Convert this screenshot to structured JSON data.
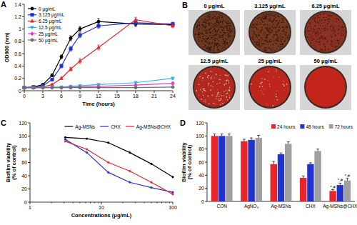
{
  "chart_data": [
    {
      "label": "A",
      "type": "line",
      "xlabel": "Time (hours)",
      "ylabel": "OD600 (nm)",
      "x": [
        0,
        1.5,
        3,
        4.5,
        6,
        7.5,
        9,
        12,
        18,
        24
      ],
      "xlim": [
        0,
        24
      ],
      "xticks": [
        0,
        3,
        6,
        9,
        12,
        15,
        18,
        21,
        24
      ],
      "ylim": [
        0,
        1.4
      ],
      "yticks": [
        0,
        0.2,
        0.4,
        0.6,
        0.8,
        1,
        1.2,
        1.4
      ],
      "legend": "upper left",
      "series": [
        {
          "name": "0 μg/mL",
          "color": "#000000",
          "marker": "circle",
          "values": [
            0.05,
            0.06,
            0.1,
            0.25,
            0.55,
            0.85,
            1.0,
            1.12,
            1.08,
            1.07
          ],
          "errors": [
            0.01,
            0.01,
            0.01,
            0.02,
            0.03,
            0.04,
            0.04,
            0.05,
            0.04,
            0.03
          ]
        },
        {
          "name": "3.125 μg/mL",
          "color": "#2233cc",
          "marker": "square",
          "values": [
            0.05,
            0.06,
            0.08,
            0.18,
            0.4,
            0.68,
            0.9,
            1.05,
            1.1,
            1.08
          ],
          "errors": [
            0.01,
            0.01,
            0.01,
            0.02,
            0.03,
            0.04,
            0.04,
            0.04,
            0.04,
            0.03
          ]
        },
        {
          "name": "6.25 μg/mL",
          "color": "#e8262a",
          "marker": "triangle",
          "values": [
            0.05,
            0.05,
            0.06,
            0.1,
            0.2,
            0.35,
            0.48,
            0.7,
            1.15,
            1.05
          ],
          "errors": [
            0.01,
            0.01,
            0.01,
            0.01,
            0.02,
            0.03,
            0.04,
            0.04,
            0.04,
            0.03
          ]
        },
        {
          "name": "12.5 μg/mL",
          "color": "#33b5e5",
          "marker": "triangle-down",
          "values": [
            0.05,
            0.05,
            0.05,
            0.06,
            0.06,
            0.07,
            0.08,
            0.1,
            0.13,
            0.2
          ],
          "errors": [
            0.01,
            0.01,
            0.01,
            0.01,
            0.01,
            0.01,
            0.01,
            0.01,
            0.02,
            0.02
          ]
        },
        {
          "name": "25 μg/mL",
          "color": "#e040c0",
          "marker": "diamond",
          "values": [
            0.05,
            0.05,
            0.05,
            0.05,
            0.05,
            0.06,
            0.06,
            0.07,
            0.09,
            0.12
          ],
          "errors": [
            0.01,
            0.01,
            0.01,
            0.01,
            0.01,
            0.01,
            0.01,
            0.01,
            0.01,
            0.02
          ]
        },
        {
          "name": "50 μg/mL",
          "color": "#707070",
          "marker": "circle",
          "values": [
            0.05,
            0.05,
            0.05,
            0.05,
            0.05,
            0.05,
            0.05,
            0.05,
            0.05,
            0.06
          ],
          "errors": [
            0.01,
            0.01,
            0.01,
            0.01,
            0.01,
            0.01,
            0.01,
            0.01,
            0.01,
            0.01
          ]
        }
      ]
    },
    {
      "label": "C",
      "type": "line",
      "log": "x",
      "xlabel": "Concentrations (μg/mL)",
      "ylabel": [
        "Biofilm viability",
        "(% of control)"
      ],
      "x": [
        3.125,
        6.25,
        12.5,
        25,
        50,
        100
      ],
      "xlim": [
        1,
        100
      ],
      "xticks": [
        1,
        10,
        100
      ],
      "ylim": [
        0,
        120
      ],
      "yticks": [
        0,
        20,
        40,
        60,
        80,
        100,
        120
      ],
      "legend": "upper right",
      "series": [
        {
          "name": "Ag-MSNs",
          "color": "#000000",
          "marker": "circle",
          "values": [
            98,
            96,
            90,
            75,
            58,
            38
          ]
        },
        {
          "name": "CHX",
          "color": "#2233cc",
          "marker": "circle",
          "values": [
            95,
            75,
            45,
            30,
            22,
            15
          ]
        },
        {
          "name": "Ag-MSNs@CHX",
          "color": "#e8262a",
          "marker": "circle",
          "values": [
            92,
            80,
            60,
            47,
            30,
            12
          ]
        }
      ]
    },
    {
      "label": "D",
      "type": "bar",
      "ylabel": [
        "Biofilm viability",
        "(% of control)"
      ],
      "categories": [
        "CON",
        "AgNO₃",
        "Ag-MSNs",
        "CHX",
        "Ag-MSNs@CHX"
      ],
      "ylim": [
        0,
        120
      ],
      "yticks": [
        0,
        20,
        40,
        60,
        80,
        100,
        120
      ],
      "legend": "upper right",
      "series": [
        {
          "name": "24 hours",
          "color": "#e8262a",
          "values": [
            100,
            92,
            57,
            36,
            16
          ],
          "errors": [
            3,
            3,
            4,
            3,
            2
          ]
        },
        {
          "name": "48 hours",
          "color": "#2233cc",
          "values": [
            100,
            94,
            72,
            57,
            25
          ],
          "errors": [
            3,
            3,
            2,
            2,
            3
          ]
        },
        {
          "name": "72 hours",
          "color": "#a0a0a0",
          "values": [
            100,
            97,
            88,
            77,
            32
          ],
          "errors": [
            3,
            4,
            3,
            3,
            3
          ]
        }
      ],
      "annotations": [
        {
          "text": "*,#",
          "category": 4,
          "series": 0
        },
        {
          "text": "*,#",
          "category": 4,
          "series": 1
        },
        {
          "text": "*,#",
          "category": 4,
          "series": 2
        }
      ]
    }
  ],
  "panel_b": {
    "label": "B",
    "images": [
      "0 μg/mL",
      "3.125 μg/mL",
      "6.25 μg/mL",
      "12.5 μg/mL",
      "25 μg/mL",
      "50 μg/mL"
    ]
  }
}
